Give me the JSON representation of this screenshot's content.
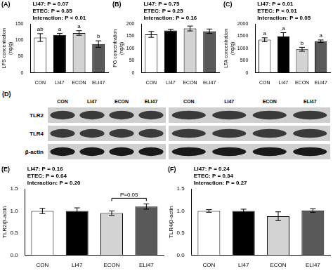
{
  "chart_data": [
    {
      "type": "bar",
      "label": "(A)",
      "annotations": [
        "LI47: P = 0.07",
        "ETEC: P = 0.35",
        "Interaction: P < 0.01"
      ],
      "y_label": [
        "LPS concentration",
        "(ng/g)"
      ],
      "categories": [
        "CON",
        "LI47",
        "ECON",
        "ELI47"
      ],
      "values": [
        108,
        116,
        122,
        88
      ],
      "errors": [
        12,
        5,
        7,
        10
      ],
      "letters": [
        "ab",
        "a",
        "a",
        "b"
      ],
      "colors": [
        "#ffffff",
        "#000000",
        "#d3d3d3",
        "#595959"
      ],
      "ylim": [
        0,
        150
      ],
      "yticks": [
        0,
        50,
        100,
        150
      ],
      "grid": false
    },
    {
      "type": "bar",
      "label": "(B)",
      "annotations": [
        "LI47: P = 0.75",
        "ETEC: P = 0.25",
        "Interaction: P = 0.16"
      ],
      "y_label": [
        "PG concentration",
        "(ng/g)"
      ],
      "categories": [
        "CON",
        "LI47",
        "ECON",
        "ELI47"
      ],
      "values": [
        157,
        173,
        181,
        170
      ],
      "errors": [
        12,
        5,
        10,
        9
      ],
      "colors": [
        "#ffffff",
        "#000000",
        "#d3d3d3",
        "#595959"
      ],
      "ylim": [
        0,
        200
      ],
      "yticks": [
        0,
        50,
        100,
        150,
        200
      ],
      "grid": false
    },
    {
      "type": "bar",
      "label": "(C)",
      "annotations": [
        "LI47: P = 0.01",
        "ETEC: P < 0.01",
        "Interaction: P = 0.05"
      ],
      "y_label": [
        "LTA concentration",
        "(ng/g)"
      ],
      "categories": [
        "CON",
        "LI47",
        "ECON",
        "ELI47"
      ],
      "values": [
        1350,
        1500,
        960,
        1290
      ],
      "errors": [
        80,
        140,
        80,
        50
      ],
      "letters": [
        "a",
        "a",
        "b",
        "a"
      ],
      "colors": [
        "#ffffff",
        "#000000",
        "#d3d3d3",
        "#595959"
      ],
      "ylim": [
        0,
        2000
      ],
      "yticks": [
        0,
        500,
        1000,
        1500,
        2000
      ],
      "grid": false
    },
    {
      "type": "bar",
      "label": "(E)",
      "annotations": [
        "LI47: P = 0.16",
        "ETEC: P = 0.64",
        "Interaction: P = 0.20"
      ],
      "y_label": "TLR2/β-actin",
      "categories": [
        "CON",
        "LI47",
        "ECON",
        "ELI47"
      ],
      "values": [
        1.0,
        1.0,
        0.95,
        1.1
      ],
      "errors": [
        0.06,
        0.07,
        0.05,
        0.06
      ],
      "bracket": {
        "from": "ECON",
        "to": "ELI47",
        "label": "P=0.05"
      },
      "colors": [
        "#ffffff",
        "#000000",
        "#d3d3d3",
        "#595959"
      ],
      "ylim": [
        0,
        1.5
      ],
      "yticks": [
        {
          "value": 0,
          "label": "0.0"
        },
        {
          "value": 0.5,
          "label": "0.5"
        },
        {
          "value": 1,
          "label": "1.0"
        },
        {
          "value": 1.5,
          "label": "1.5"
        }
      ],
      "grid": false
    },
    {
      "type": "bar",
      "label": "(F)",
      "annotations": [
        "LI47: P = 0.24",
        "ETEC: P = 0.34",
        "Interaction: P = 0.27"
      ],
      "y_label": "TLR4/β-actin",
      "categories": [
        "CON",
        "LI47",
        "ECON",
        "ELI47"
      ],
      "values": [
        1.0,
        1.0,
        0.88,
        1.01
      ],
      "errors": [
        0.03,
        0.04,
        0.1,
        0.04
      ],
      "colors": [
        "#ffffff",
        "#000000",
        "#d3d3d3",
        "#595959"
      ],
      "ylim": [
        0,
        1.5
      ],
      "yticks": [
        {
          "value": 0,
          "label": "0.0"
        },
        {
          "value": 0.5,
          "label": "0.5"
        },
        {
          "value": 1,
          "label": "1.0"
        },
        {
          "value": 1.5,
          "label": "1.5"
        }
      ],
      "grid": false
    }
  ],
  "blot": {
    "label": "(D)",
    "rows": [
      "TLR2",
      "TLR4",
      "β-actin"
    ],
    "lanes": [
      "CON",
      "LI47",
      "ECON",
      "ELI47",
      "CON",
      "LI47",
      "ECON",
      "ELI47"
    ]
  }
}
